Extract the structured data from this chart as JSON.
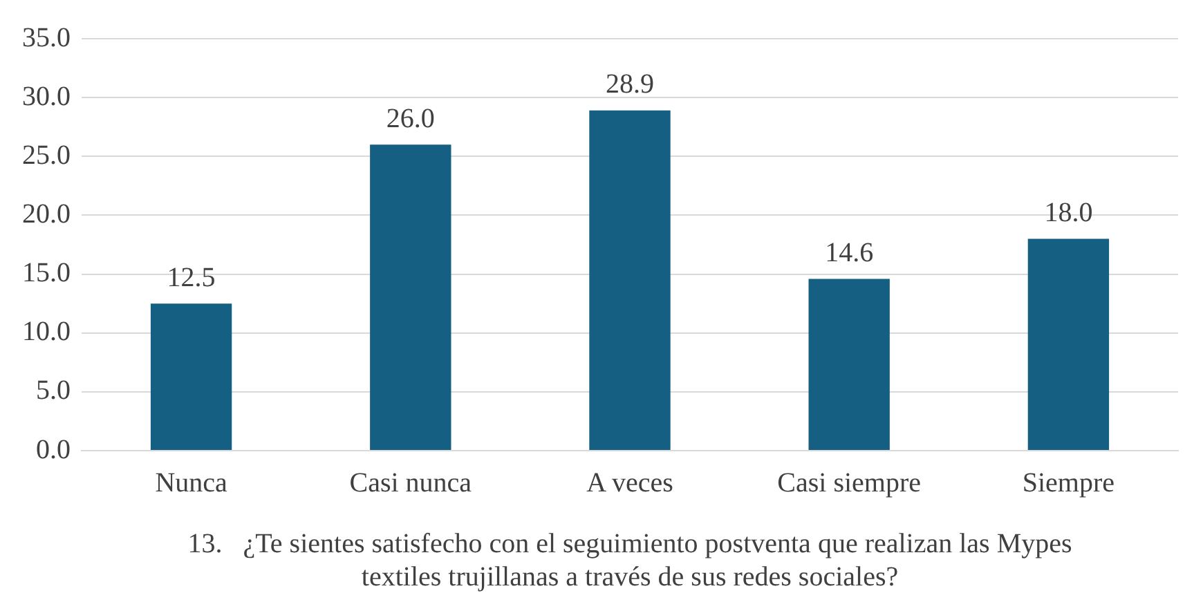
{
  "chart_data": {
    "type": "bar",
    "xlabel": [
      "13.   ¿Te sientes satisfecho con el seguimiento postventa que realizan las Mypes",
      "textiles trujillanas a través de sus redes sociales?"
    ],
    "categories": [
      "Nunca",
      "Casi nunca",
      "A veces",
      "Casi siempre",
      "Siempre"
    ],
    "values": [
      12.5,
      26.0,
      28.9,
      14.6,
      18.0
    ],
    "value_labels": [
      "12.5",
      "26.0",
      "28.9",
      "14.6",
      "18.0"
    ],
    "color": "#156082",
    "ylim": [
      0,
      35
    ],
    "yticks": [
      {
        "value": 0,
        "label": "0.0"
      },
      {
        "value": 5,
        "label": "5.0"
      },
      {
        "value": 10,
        "label": "10.0"
      },
      {
        "value": 15,
        "label": "15.0"
      },
      {
        "value": 20,
        "label": "20.0"
      },
      {
        "value": 25,
        "label": "25.0"
      },
      {
        "value": 30,
        "label": "30.0"
      },
      {
        "value": 35,
        "label": "35.0"
      }
    ],
    "grid": "y",
    "legend": false
  }
}
